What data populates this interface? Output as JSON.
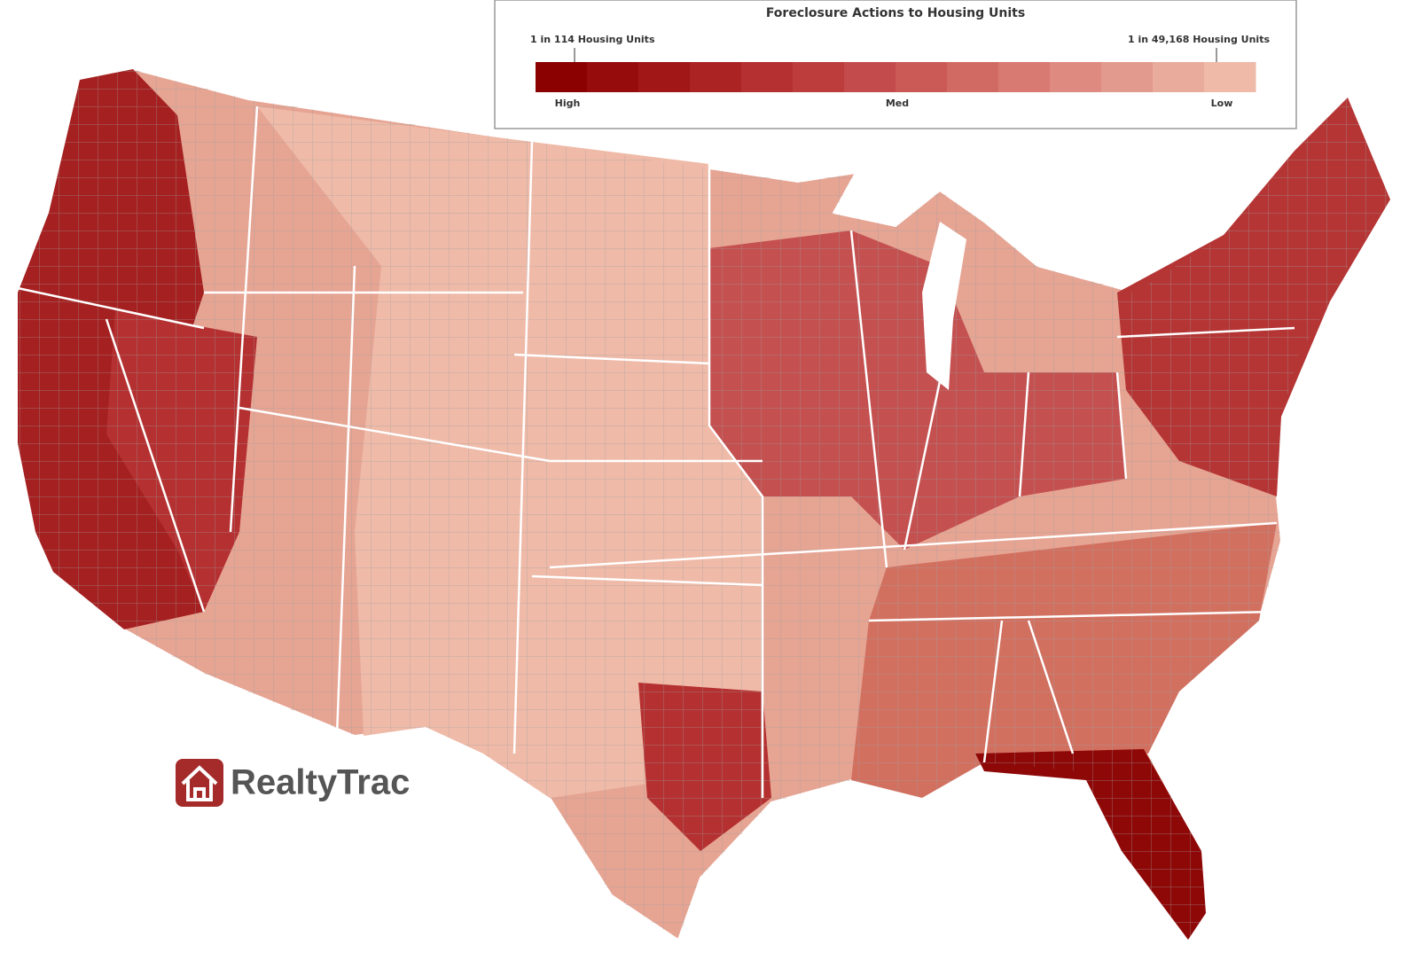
{
  "legend": {
    "title": "Foreclosure Actions to Housing Units",
    "high_label_top": "1 in 114 Housing Units",
    "low_label_top": "1 in 49,168 Housing Units",
    "scale_labels": [
      "High",
      "Med",
      "Low"
    ],
    "colors": [
      "#8b0000",
      "#960b0b",
      "#a11717",
      "#ab2323",
      "#b53030",
      "#bd3d3d",
      "#c44b4b",
      "#cb5a57",
      "#d26a64",
      "#d87a72",
      "#de8a80",
      "#e39a8e",
      "#e9ab9c",
      "#efbaa8"
    ]
  },
  "logo": {
    "text": "RealtyTrac"
  }
}
